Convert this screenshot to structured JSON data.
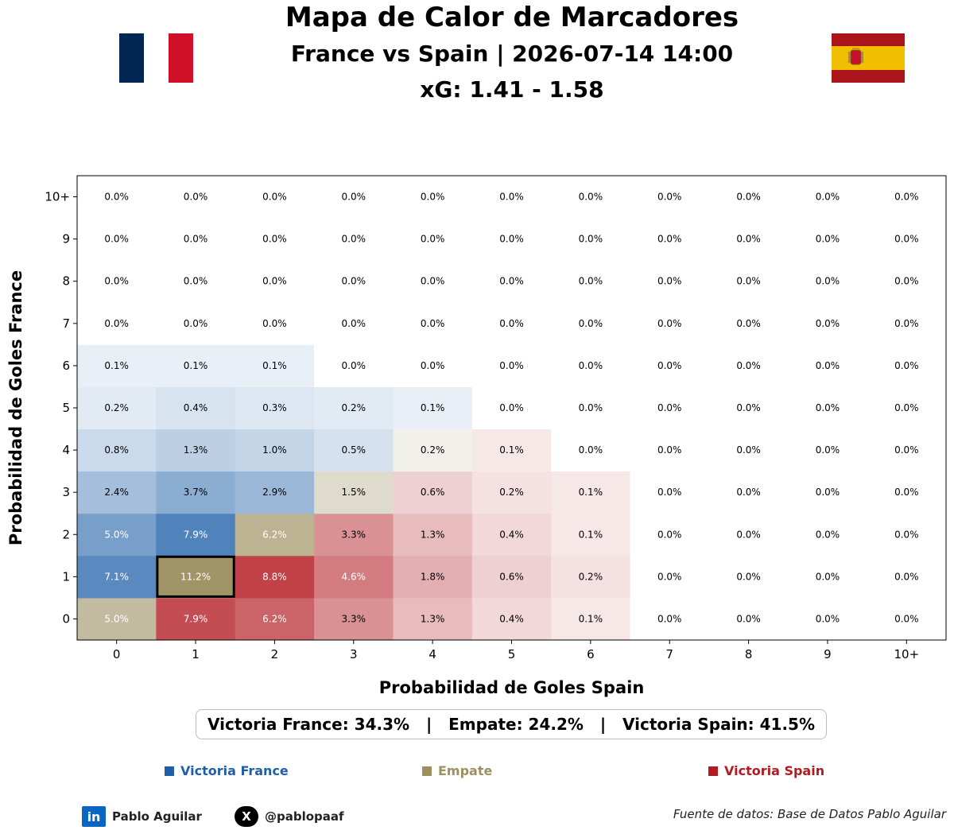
{
  "header": {
    "title": "Mapa de Calor de Marcadores",
    "match": "France vs Spain | 2026-07-14 14:00",
    "xg": "xG: 1.41 - 1.58"
  },
  "flags": {
    "home": {
      "team": "France",
      "colors": [
        "#002654",
        "#ffffff",
        "#ce1126"
      ]
    },
    "away": {
      "team": "Spain",
      "colors": [
        "#aa151b",
        "#f1bf00",
        "#aa151b"
      ]
    }
  },
  "colors": {
    "home_win": "#1f5fa8",
    "draw": "#9c8f60",
    "away_win": "#b31b22"
  },
  "chart_data": {
    "type": "heatmap",
    "xlabel": "Probabilidad de Goles Spain",
    "ylabel": "Probabilidad de Goles France",
    "x_categories": [
      "0",
      "1",
      "2",
      "3",
      "4",
      "5",
      "6",
      "7",
      "8",
      "9",
      "10+"
    ],
    "y_categories": [
      "0",
      "1",
      "2",
      "3",
      "4",
      "5",
      "6",
      "7",
      "8",
      "9",
      "10+"
    ],
    "values": [
      [
        5.0,
        7.9,
        6.2,
        3.3,
        1.3,
        0.4,
        0.1,
        0.0,
        0.0,
        0.0,
        0.0
      ],
      [
        7.1,
        11.2,
        8.8,
        4.6,
        1.8,
        0.6,
        0.2,
        0.0,
        0.0,
        0.0,
        0.0
      ],
      [
        5.0,
        7.9,
        6.2,
        3.3,
        1.3,
        0.4,
        0.1,
        0.0,
        0.0,
        0.0,
        0.0
      ],
      [
        2.4,
        3.7,
        2.9,
        1.5,
        0.6,
        0.2,
        0.1,
        0.0,
        0.0,
        0.0,
        0.0
      ],
      [
        0.8,
        1.3,
        1.0,
        0.5,
        0.2,
        0.1,
        0.0,
        0.0,
        0.0,
        0.0,
        0.0
      ],
      [
        0.2,
        0.4,
        0.3,
        0.2,
        0.1,
        0.0,
        0.0,
        0.0,
        0.0,
        0.0,
        0.0
      ],
      [
        0.1,
        0.1,
        0.1,
        0.0,
        0.0,
        0.0,
        0.0,
        0.0,
        0.0,
        0.0,
        0.0
      ],
      [
        0.0,
        0.0,
        0.0,
        0.0,
        0.0,
        0.0,
        0.0,
        0.0,
        0.0,
        0.0,
        0.0
      ],
      [
        0.0,
        0.0,
        0.0,
        0.0,
        0.0,
        0.0,
        0.0,
        0.0,
        0.0,
        0.0,
        0.0
      ],
      [
        0.0,
        0.0,
        0.0,
        0.0,
        0.0,
        0.0,
        0.0,
        0.0,
        0.0,
        0.0,
        0.0
      ],
      [
        0.0,
        0.0,
        0.0,
        0.0,
        0.0,
        0.0,
        0.0,
        0.0,
        0.0,
        0.0,
        0.0
      ]
    ],
    "value_format": "percent_1dp",
    "most_likely_cell": {
      "france_goals": "1",
      "spain_goals": "1"
    },
    "colormap": "blue = France win, tan = draw, red = Spain win; intensity by probability"
  },
  "summary": {
    "home": "Victoria France: 34.3%",
    "draw": "Empate: 24.2%",
    "away": "Victoria Spain: 41.5%",
    "separator": "|"
  },
  "legend": {
    "home": "Victoria France",
    "draw": "Empate",
    "away": "Victoria Spain"
  },
  "footer": {
    "linkedin_icon": "linkedin-icon",
    "linkedin_glyph": "in",
    "linkedin_name": "Pablo Aguilar",
    "x_icon": "x-icon",
    "x_glyph": "X",
    "x_handle": "@pablopaaf",
    "source": "Fuente de datos: Base de Datos Pablo Aguilar"
  }
}
